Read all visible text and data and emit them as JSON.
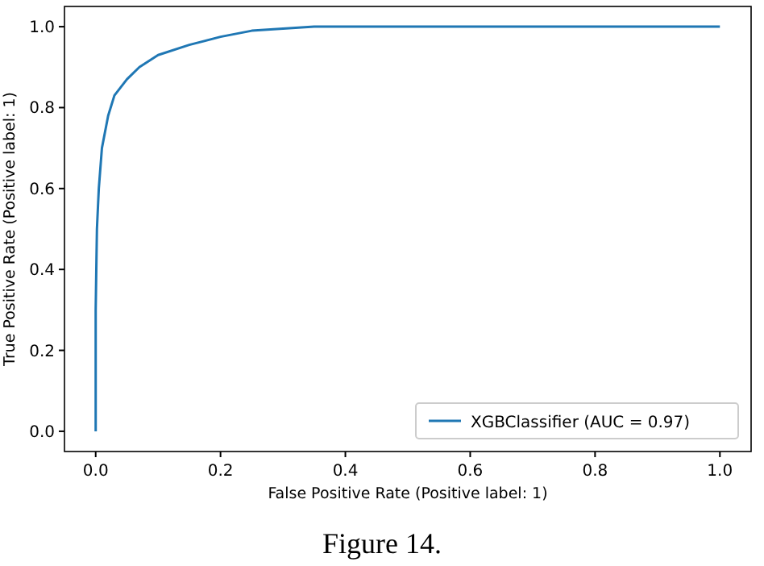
{
  "chart_data": {
    "type": "line",
    "xlabel": "False Positive Rate (Positive label: 1)",
    "ylabel": "True Positive Rate (Positive label: 1)",
    "annotations": [
      "Figure 14."
    ],
    "x": [
      0,
      0,
      0.002,
      0.005,
      0.01,
      0.02,
      0.03,
      0.05,
      0.07,
      0.1,
      0.15,
      0.2,
      0.25,
      0.3,
      0.35,
      0.5,
      1
    ],
    "series": [
      {
        "name": "XGBClassifier (AUC = 0.97)",
        "color": "#1f77b4",
        "values": [
          0,
          0.3,
          0.5,
          0.6,
          0.7,
          0.78,
          0.83,
          0.87,
          0.9,
          0.93,
          0.955,
          0.975,
          0.99,
          0.995,
          1,
          1,
          1
        ]
      }
    ],
    "xlim": [
      -0.05,
      1.05
    ],
    "ylim": [
      -0.05,
      1.05
    ],
    "xticks": [
      {
        "value": 0,
        "label": "0.0"
      },
      {
        "value": 0.2,
        "label": "0.2"
      },
      {
        "value": 0.4,
        "label": "0.4"
      },
      {
        "value": 0.6,
        "label": "0.6"
      },
      {
        "value": 0.8,
        "label": "0.8"
      },
      {
        "value": 1,
        "label": "1.0"
      }
    ],
    "yticks": [
      {
        "value": 0,
        "label": "0.0"
      },
      {
        "value": 0.2,
        "label": "0.2"
      },
      {
        "value": 0.4,
        "label": "0.4"
      },
      {
        "value": 0.6,
        "label": "0.6"
      },
      {
        "value": 0.8,
        "label": "0.8"
      },
      {
        "value": 1,
        "label": "1.0"
      }
    ],
    "legend": "bottom right",
    "grid": false,
    "marker": "none",
    "line_style": "solid"
  }
}
